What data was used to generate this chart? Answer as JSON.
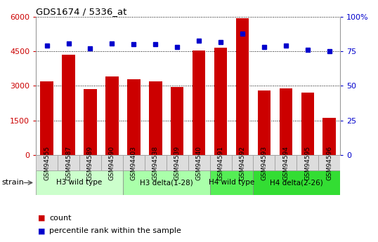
{
  "title": "GDS1674 / 5336_at",
  "samples": [
    "GSM94555",
    "GSM94587",
    "GSM94589",
    "GSM94590",
    "GSM94403",
    "GSM94538",
    "GSM94539",
    "GSM94540",
    "GSM94591",
    "GSM94592",
    "GSM94593",
    "GSM94594",
    "GSM94595",
    "GSM94596"
  ],
  "counts": [
    3200,
    4350,
    2850,
    3400,
    3300,
    3200,
    2950,
    4550,
    4650,
    5950,
    2800,
    2900,
    2700,
    1600
  ],
  "percentiles": [
    79,
    81,
    77,
    81,
    80,
    80,
    78,
    83,
    82,
    88,
    78,
    79,
    76,
    75
  ],
  "bar_color": "#cc0000",
  "dot_color": "#0000cc",
  "ylim_left": [
    0,
    6000
  ],
  "ylim_right": [
    0,
    100
  ],
  "yticks_left": [
    0,
    1500,
    3000,
    4500,
    6000
  ],
  "yticks_right": [
    0,
    25,
    50,
    75,
    100
  ],
  "groups": [
    {
      "label": "H3 wild type",
      "start": 0,
      "end": 4,
      "color": "#ccffcc"
    },
    {
      "label": "H3 delta(1-28)",
      "start": 4,
      "end": 8,
      "color": "#aaffaa"
    },
    {
      "label": "H4 wild type",
      "start": 8,
      "end": 10,
      "color": "#55ee55"
    },
    {
      "label": "H4 delta(2-26)",
      "start": 10,
      "end": 14,
      "color": "#33dd33"
    }
  ],
  "strain_label": "strain",
  "legend_count_label": "count",
  "legend_pct_label": "percentile rank within the sample",
  "background_color": "#ffffff",
  "sample_box_color": "#dddddd",
  "grid_color": "black",
  "spine_color": "#888888"
}
